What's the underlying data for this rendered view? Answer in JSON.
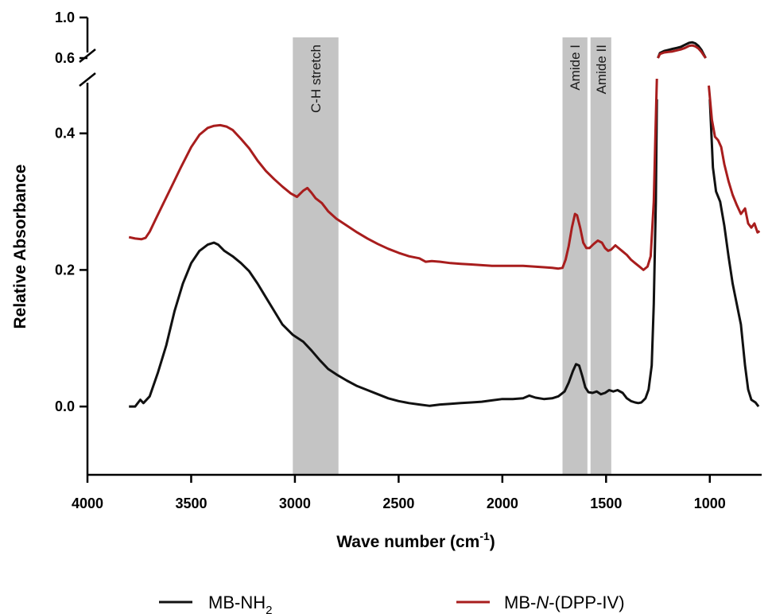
{
  "chart_data": {
    "type": "line",
    "xlabel": "Wave number (cm",
    "xlabel_sup": "-1",
    "xlabel_close": ")",
    "ylabel": "Relative Absorbance",
    "x_reversed": true,
    "xlim": [
      4000,
      750
    ],
    "ylim_lower": [
      -0.1,
      0.48
    ],
    "ylim_upper": [
      0.6,
      1.0
    ],
    "x_ticks": [
      4000,
      3500,
      3000,
      2500,
      2000,
      1500,
      1000
    ],
    "x_tick_labels": [
      "4000",
      "3500",
      "3000",
      "2500",
      "2000",
      "1500",
      "1000"
    ],
    "y_ticks_lower": [
      0.0,
      0.2,
      0.4
    ],
    "y_tick_labels_lower": [
      "0.0",
      "0.2",
      "0.4"
    ],
    "y_ticks_upper": [
      0.6,
      1.0
    ],
    "y_tick_labels_upper": [
      "0.6",
      "1.0"
    ],
    "axis_break": true,
    "grid": false,
    "legend_position": "bottom",
    "bands": [
      {
        "label": "C-H stretch",
        "x_from": 3010,
        "x_to": 2790,
        "color": "#c4c4c4"
      },
      {
        "label": "Amide I",
        "x_from": 1710,
        "x_to": 1590,
        "color": "#c4c4c4"
      },
      {
        "label": "Amide II",
        "x_from": 1575,
        "x_to": 1475,
        "color": "#c4c4c4"
      }
    ],
    "series": [
      {
        "name": "MB-NH",
        "name_sub": "2",
        "color": "#111111",
        "points": [
          [
            3800,
            0.0
          ],
          [
            3770,
            0.0
          ],
          [
            3745,
            0.01
          ],
          [
            3730,
            0.005
          ],
          [
            3700,
            0.015
          ],
          [
            3660,
            0.05
          ],
          [
            3620,
            0.09
          ],
          [
            3580,
            0.14
          ],
          [
            3540,
            0.18
          ],
          [
            3500,
            0.21
          ],
          [
            3460,
            0.228
          ],
          [
            3420,
            0.237
          ],
          [
            3390,
            0.24
          ],
          [
            3370,
            0.237
          ],
          [
            3340,
            0.228
          ],
          [
            3300,
            0.22
          ],
          [
            3260,
            0.21
          ],
          [
            3220,
            0.198
          ],
          [
            3180,
            0.18
          ],
          [
            3140,
            0.16
          ],
          [
            3100,
            0.14
          ],
          [
            3060,
            0.12
          ],
          [
            3010,
            0.105
          ],
          [
            2960,
            0.095
          ],
          [
            2920,
            0.082
          ],
          [
            2880,
            0.068
          ],
          [
            2840,
            0.055
          ],
          [
            2800,
            0.047
          ],
          [
            2750,
            0.038
          ],
          [
            2700,
            0.03
          ],
          [
            2650,
            0.024
          ],
          [
            2600,
            0.018
          ],
          [
            2550,
            0.012
          ],
          [
            2500,
            0.008
          ],
          [
            2450,
            0.005
          ],
          [
            2400,
            0.003
          ],
          [
            2350,
            0.001
          ],
          [
            2300,
            0.003
          ],
          [
            2250,
            0.004
          ],
          [
            2200,
            0.005
          ],
          [
            2150,
            0.006
          ],
          [
            2100,
            0.007
          ],
          [
            2050,
            0.009
          ],
          [
            2000,
            0.011
          ],
          [
            1950,
            0.011
          ],
          [
            1900,
            0.012
          ],
          [
            1870,
            0.016
          ],
          [
            1840,
            0.013
          ],
          [
            1800,
            0.011
          ],
          [
            1760,
            0.012
          ],
          [
            1730,
            0.015
          ],
          [
            1700,
            0.022
          ],
          [
            1680,
            0.035
          ],
          [
            1660,
            0.052
          ],
          [
            1645,
            0.062
          ],
          [
            1630,
            0.06
          ],
          [
            1615,
            0.045
          ],
          [
            1600,
            0.028
          ],
          [
            1585,
            0.021
          ],
          [
            1565,
            0.02
          ],
          [
            1545,
            0.022
          ],
          [
            1525,
            0.018
          ],
          [
            1505,
            0.02
          ],
          [
            1485,
            0.024
          ],
          [
            1465,
            0.022
          ],
          [
            1445,
            0.024
          ],
          [
            1420,
            0.02
          ],
          [
            1400,
            0.012
          ],
          [
            1380,
            0.008
          ],
          [
            1360,
            0.006
          ],
          [
            1345,
            0.005
          ],
          [
            1330,
            0.006
          ],
          [
            1310,
            0.012
          ],
          [
            1295,
            0.025
          ],
          [
            1280,
            0.06
          ],
          [
            1270,
            0.15
          ],
          [
            1260,
            0.3
          ],
          [
            1255,
            0.45
          ],
          [
            1250,
            0.6
          ],
          [
            1240,
            0.65
          ],
          [
            1220,
            0.67
          ],
          [
            1200,
            0.68
          ],
          [
            1180,
            0.69
          ],
          [
            1160,
            0.7
          ],
          [
            1140,
            0.71
          ],
          [
            1120,
            0.73
          ],
          [
            1100,
            0.75
          ],
          [
            1085,
            0.755
          ],
          [
            1070,
            0.745
          ],
          [
            1055,
            0.72
          ],
          [
            1040,
            0.68
          ],
          [
            1030,
            0.64
          ],
          [
            1020,
            0.6
          ],
          [
            1000,
            0.45
          ],
          [
            985,
            0.35
          ],
          [
            970,
            0.315
          ],
          [
            950,
            0.3
          ],
          [
            930,
            0.265
          ],
          [
            910,
            0.22
          ],
          [
            890,
            0.18
          ],
          [
            870,
            0.15
          ],
          [
            850,
            0.12
          ],
          [
            830,
            0.06
          ],
          [
            815,
            0.025
          ],
          [
            800,
            0.01
          ],
          [
            780,
            0.006
          ],
          [
            765,
            0.0
          ]
        ]
      },
      {
        "name": "MB-",
        "name_italic": "N",
        "name_rest": "-(DPP-IV)",
        "color": "#a81d1d",
        "points": [
          [
            3800,
            0.248
          ],
          [
            3770,
            0.246
          ],
          [
            3740,
            0.245
          ],
          [
            3720,
            0.247
          ],
          [
            3700,
            0.256
          ],
          [
            3670,
            0.275
          ],
          [
            3630,
            0.3
          ],
          [
            3590,
            0.325
          ],
          [
            3550,
            0.35
          ],
          [
            3500,
            0.38
          ],
          [
            3460,
            0.398
          ],
          [
            3420,
            0.408
          ],
          [
            3390,
            0.411
          ],
          [
            3360,
            0.412
          ],
          [
            3330,
            0.41
          ],
          [
            3300,
            0.405
          ],
          [
            3260,
            0.392
          ],
          [
            3220,
            0.378
          ],
          [
            3180,
            0.36
          ],
          [
            3140,
            0.345
          ],
          [
            3100,
            0.333
          ],
          [
            3060,
            0.322
          ],
          [
            3020,
            0.312
          ],
          [
            2990,
            0.307
          ],
          [
            2960,
            0.316
          ],
          [
            2940,
            0.32
          ],
          [
            2920,
            0.313
          ],
          [
            2900,
            0.305
          ],
          [
            2870,
            0.298
          ],
          [
            2840,
            0.286
          ],
          [
            2800,
            0.275
          ],
          [
            2750,
            0.265
          ],
          [
            2700,
            0.255
          ],
          [
            2650,
            0.246
          ],
          [
            2600,
            0.238
          ],
          [
            2550,
            0.231
          ],
          [
            2500,
            0.225
          ],
          [
            2450,
            0.22
          ],
          [
            2400,
            0.217
          ],
          [
            2370,
            0.212
          ],
          [
            2340,
            0.213
          ],
          [
            2300,
            0.212
          ],
          [
            2250,
            0.21
          ],
          [
            2200,
            0.209
          ],
          [
            2150,
            0.208
          ],
          [
            2100,
            0.207
          ],
          [
            2050,
            0.206
          ],
          [
            2000,
            0.206
          ],
          [
            1950,
            0.206
          ],
          [
            1900,
            0.206
          ],
          [
            1850,
            0.205
          ],
          [
            1800,
            0.204
          ],
          [
            1760,
            0.203
          ],
          [
            1730,
            0.202
          ],
          [
            1710,
            0.203
          ],
          [
            1695,
            0.215
          ],
          [
            1680,
            0.235
          ],
          [
            1665,
            0.262
          ],
          [
            1650,
            0.282
          ],
          [
            1640,
            0.28
          ],
          [
            1625,
            0.262
          ],
          [
            1610,
            0.24
          ],
          [
            1595,
            0.232
          ],
          [
            1580,
            0.232
          ],
          [
            1560,
            0.238
          ],
          [
            1540,
            0.243
          ],
          [
            1520,
            0.24
          ],
          [
            1505,
            0.232
          ],
          [
            1490,
            0.228
          ],
          [
            1475,
            0.23
          ],
          [
            1455,
            0.236
          ],
          [
            1440,
            0.232
          ],
          [
            1420,
            0.227
          ],
          [
            1400,
            0.222
          ],
          [
            1380,
            0.215
          ],
          [
            1360,
            0.21
          ],
          [
            1340,
            0.205
          ],
          [
            1320,
            0.2
          ],
          [
            1300,
            0.205
          ],
          [
            1285,
            0.22
          ],
          [
            1270,
            0.3
          ],
          [
            1262,
            0.4
          ],
          [
            1255,
            0.5
          ],
          [
            1250,
            0.6
          ],
          [
            1240,
            0.64
          ],
          [
            1220,
            0.655
          ],
          [
            1200,
            0.66
          ],
          [
            1180,
            0.665
          ],
          [
            1160,
            0.675
          ],
          [
            1140,
            0.685
          ],
          [
            1120,
            0.7
          ],
          [
            1100,
            0.72
          ],
          [
            1085,
            0.725
          ],
          [
            1070,
            0.715
          ],
          [
            1055,
            0.695
          ],
          [
            1040,
            0.66
          ],
          [
            1030,
            0.63
          ],
          [
            1020,
            0.6
          ],
          [
            1005,
            0.47
          ],
          [
            990,
            0.42
          ],
          [
            975,
            0.395
          ],
          [
            960,
            0.39
          ],
          [
            945,
            0.38
          ],
          [
            930,
            0.355
          ],
          [
            910,
            0.33
          ],
          [
            890,
            0.31
          ],
          [
            870,
            0.295
          ],
          [
            850,
            0.282
          ],
          [
            830,
            0.29
          ],
          [
            815,
            0.268
          ],
          [
            800,
            0.262
          ],
          [
            785,
            0.268
          ],
          [
            770,
            0.255
          ],
          [
            760,
            0.257
          ]
        ]
      }
    ]
  }
}
